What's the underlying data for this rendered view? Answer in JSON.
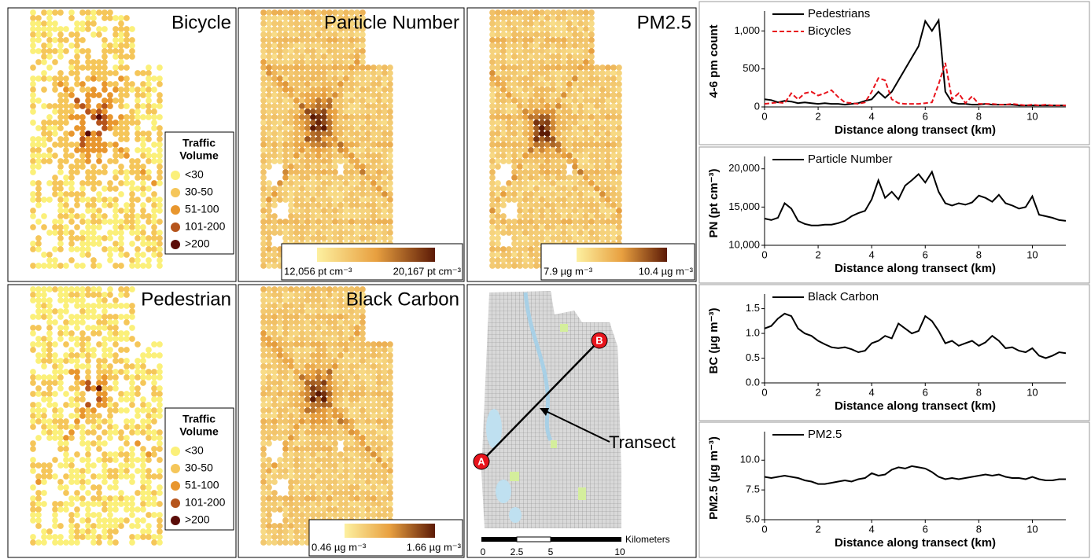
{
  "maps": [
    {
      "title": "Bicycle",
      "legend": {
        "title_lines": [
          "Traffic",
          "Volume"
        ],
        "items": [
          {
            "label": "<30",
            "color": "#fbf07a"
          },
          {
            "label": "30-50",
            "color": "#f5c65a"
          },
          {
            "label": "51-100",
            "color": "#e8962e"
          },
          {
            "label": "101-200",
            "color": "#b5541c"
          },
          {
            "label": ">200",
            "color": "#5a0c08"
          }
        ]
      }
    },
    {
      "title": "Particle Number",
      "colorbar": {
        "low": "12,056 pt cm⁻³",
        "high": "20,167 pt cm⁻³",
        "colors": [
          "#fdf0a0",
          "#e8a040",
          "#5c1a06"
        ]
      }
    },
    {
      "title": "PM2.5",
      "colorbar": {
        "low": "7.9 µg m⁻³",
        "high": "10.4 µg m⁻³",
        "colors": [
          "#fdf0a0",
          "#e8a040",
          "#5c1a06"
        ]
      }
    },
    {
      "title": "Pedestrian",
      "legend": {
        "title_lines": [
          "Traffic",
          "Volume"
        ],
        "items": [
          {
            "label": "<30",
            "color": "#fbf07a"
          },
          {
            "label": "30-50",
            "color": "#f5c65a"
          },
          {
            "label": "51-100",
            "color": "#e8962e"
          },
          {
            "label": "101-200",
            "color": "#b5541c"
          },
          {
            "label": ">200",
            "color": "#5a0c08"
          }
        ]
      }
    },
    {
      "title": "Black Carbon",
      "colorbar": {
        "low": "0.46 µg m⁻³",
        "high": "1.66 µg m⁻³",
        "colors": [
          "#fdf0a0",
          "#e8a040",
          "#5c1a06"
        ]
      }
    }
  ],
  "transect_map": {
    "start": "A",
    "end": "B",
    "label": "Transect",
    "scale_unit": "Kilometers",
    "scale_labels": [
      "0",
      "2.5",
      "5",
      "10"
    ]
  },
  "chart_data": [
    {
      "type": "line",
      "ylabel": "4-6 pm count",
      "xlabel": "Distance along transect (km)",
      "xlim": [
        0,
        11.25
      ],
      "xticks": [
        0,
        2,
        4,
        6,
        8,
        10
      ],
      "ylim": [
        0,
        1200
      ],
      "yticks": [
        0,
        500,
        {
          "value": 1000,
          "label": "1,000"
        }
      ],
      "x": [
        0,
        0.25,
        0.5,
        0.75,
        1,
        1.25,
        1.5,
        1.75,
        2,
        2.25,
        2.5,
        2.75,
        3,
        3.25,
        3.5,
        3.75,
        4,
        4.25,
        4.5,
        4.75,
        5,
        5.25,
        5.5,
        5.75,
        6,
        6.25,
        6.5,
        6.75,
        7,
        7.25,
        7.5,
        7.75,
        8,
        8.25,
        8.5,
        8.75,
        9,
        9.25,
        9.5,
        9.75,
        10,
        10.25,
        10.5,
        10.75,
        11,
        11.25
      ],
      "series": [
        {
          "name": "Pedestrians",
          "color": "#000000",
          "style": "solid",
          "values": [
            100,
            90,
            60,
            80,
            70,
            50,
            60,
            50,
            40,
            50,
            40,
            40,
            30,
            40,
            50,
            80,
            100,
            200,
            120,
            200,
            350,
            500,
            650,
            800,
            1130,
            1000,
            1140,
            200,
            60,
            40,
            40,
            30,
            30,
            40,
            30,
            30,
            30,
            30,
            20,
            20,
            20,
            20,
            20,
            20,
            20,
            20
          ]
        },
        {
          "name": "Bicycles",
          "color": "#e8141c",
          "style": "dashed",
          "values": [
            40,
            50,
            60,
            50,
            180,
            100,
            180,
            200,
            150,
            180,
            220,
            130,
            60,
            50,
            40,
            60,
            200,
            380,
            350,
            100,
            50,
            40,
            40,
            40,
            50,
            60,
            300,
            580,
            100,
            180,
            50,
            140,
            40,
            40,
            40,
            30,
            30,
            40,
            30,
            20,
            30,
            20,
            30,
            20,
            20,
            20
          ]
        }
      ]
    },
    {
      "type": "line",
      "ylabel": "PN (pt cm⁻³)",
      "xlabel": "Distance along transect (km)",
      "xlim": [
        0,
        11.25
      ],
      "xticks": [
        0,
        2,
        4,
        6,
        8,
        10
      ],
      "ylim": [
        10000,
        21000
      ],
      "yticks": [
        {
          "value": 10000,
          "label": "10,000"
        },
        {
          "value": 15000,
          "label": "15,000"
        },
        {
          "value": 20000,
          "label": "20,000"
        }
      ],
      "x": [
        0,
        0.25,
        0.5,
        0.75,
        1,
        1.25,
        1.5,
        1.75,
        2,
        2.25,
        2.5,
        2.75,
        3,
        3.25,
        3.5,
        3.75,
        4,
        4.25,
        4.5,
        4.75,
        5,
        5.25,
        5.5,
        5.75,
        6,
        6.25,
        6.5,
        6.75,
        7,
        7.25,
        7.5,
        7.75,
        8,
        8.25,
        8.5,
        8.75,
        9,
        9.25,
        9.5,
        9.75,
        10,
        10.25,
        10.5,
        10.75,
        11,
        11.25
      ],
      "series": [
        {
          "name": "Particle Number",
          "color": "#000000",
          "style": "solid",
          "values": [
            13500,
            13300,
            13600,
            15500,
            14800,
            13200,
            12800,
            12600,
            12600,
            12700,
            12700,
            12900,
            13200,
            13800,
            14200,
            14500,
            16000,
            18500,
            16200,
            17000,
            16000,
            17800,
            18500,
            19300,
            18200,
            19600,
            17000,
            15500,
            15200,
            15500,
            15300,
            15600,
            16500,
            16200,
            15700,
            16600,
            15500,
            15200,
            14800,
            15000,
            16400,
            14000,
            13800,
            13600,
            13300,
            13200
          ]
        }
      ]
    },
    {
      "type": "line",
      "ylabel": "BC (µg m⁻³)",
      "xlabel": "Distance along transect (km)",
      "xlim": [
        0,
        11.25
      ],
      "xticks": [
        0,
        2,
        4,
        6,
        8,
        10
      ],
      "ylim": [
        0,
        1.7
      ],
      "yticks": [
        {
          "value": 0,
          "label": "0.0"
        },
        0.5,
        {
          "value": 1,
          "label": "1.0"
        },
        1.5
      ],
      "x": [
        0,
        0.25,
        0.5,
        0.75,
        1,
        1.25,
        1.5,
        1.75,
        2,
        2.25,
        2.5,
        2.75,
        3,
        3.25,
        3.5,
        3.75,
        4,
        4.25,
        4.5,
        4.75,
        5,
        5.25,
        5.5,
        5.75,
        6,
        6.25,
        6.5,
        6.75,
        7,
        7.25,
        7.5,
        7.75,
        8,
        8.25,
        8.5,
        8.75,
        9,
        9.25,
        9.5,
        9.75,
        10,
        10.25,
        10.5,
        10.75,
        11,
        11.25
      ],
      "series": [
        {
          "name": "Black Carbon",
          "color": "#000000",
          "style": "solid",
          "values": [
            1.1,
            1.15,
            1.3,
            1.4,
            1.35,
            1.1,
            1.0,
            0.95,
            0.85,
            0.78,
            0.72,
            0.7,
            0.72,
            0.68,
            0.62,
            0.65,
            0.8,
            0.85,
            0.95,
            0.9,
            1.2,
            1.1,
            1.0,
            1.05,
            1.35,
            1.25,
            1.05,
            0.8,
            0.85,
            0.75,
            0.8,
            0.85,
            0.75,
            0.82,
            0.95,
            0.85,
            0.7,
            0.72,
            0.65,
            0.62,
            0.7,
            0.55,
            0.5,
            0.55,
            0.62,
            0.6
          ]
        }
      ]
    },
    {
      "type": "line",
      "ylabel": "PM2.5 (µg m⁻³)",
      "xlabel": "Distance along transect (km)",
      "xlim": [
        0,
        11.25
      ],
      "xticks": [
        0,
        2,
        4,
        6,
        8,
        10
      ],
      "ylim": [
        5,
        12
      ],
      "yticks": [
        {
          "value": 5,
          "label": "5.0"
        },
        7.5,
        {
          "value": 10,
          "label": "10.0"
        }
      ],
      "x": [
        0,
        0.25,
        0.5,
        0.75,
        1,
        1.25,
        1.5,
        1.75,
        2,
        2.25,
        2.5,
        2.75,
        3,
        3.25,
        3.5,
        3.75,
        4,
        4.25,
        4.5,
        4.75,
        5,
        5.25,
        5.5,
        5.75,
        6,
        6.25,
        6.5,
        6.75,
        7,
        7.25,
        7.5,
        7.75,
        8,
        8.25,
        8.5,
        8.75,
        9,
        9.25,
        9.5,
        9.75,
        10,
        10.25,
        10.5,
        10.75,
        11,
        11.25
      ],
      "series": [
        {
          "name": "PM2.5",
          "color": "#000000",
          "style": "solid",
          "values": [
            8.6,
            8.5,
            8.6,
            8.7,
            8.6,
            8.5,
            8.3,
            8.2,
            8.0,
            8.0,
            8.1,
            8.2,
            8.3,
            8.2,
            8.4,
            8.5,
            8.9,
            8.7,
            8.8,
            9.2,
            9.4,
            9.3,
            9.5,
            9.4,
            9.3,
            9.0,
            8.6,
            8.4,
            8.5,
            8.4,
            8.5,
            8.6,
            8.7,
            8.8,
            8.7,
            8.8,
            8.6,
            8.5,
            8.5,
            8.4,
            8.6,
            8.4,
            8.3,
            8.3,
            8.4,
            8.4
          ]
        }
      ]
    }
  ]
}
